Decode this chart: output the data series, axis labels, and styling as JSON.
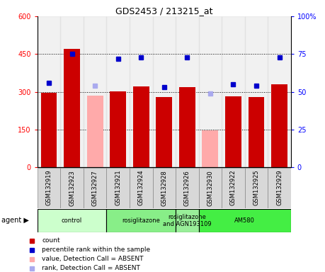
{
  "title": "GDS2453 / 213215_at",
  "samples": [
    "GSM132919",
    "GSM132923",
    "GSM132927",
    "GSM132921",
    "GSM132924",
    "GSM132928",
    "GSM132926",
    "GSM132930",
    "GSM132922",
    "GSM132925",
    "GSM132929"
  ],
  "bar_values": [
    295,
    470,
    285,
    302,
    320,
    280,
    318,
    148,
    282,
    278,
    330
  ],
  "bar_absent": [
    false,
    false,
    true,
    false,
    false,
    false,
    false,
    true,
    false,
    false,
    false
  ],
  "rank_values": [
    56,
    75,
    54,
    72,
    73,
    53,
    73,
    49,
    55,
    54,
    73
  ],
  "rank_absent": [
    false,
    false,
    true,
    false,
    false,
    false,
    false,
    true,
    false,
    false,
    false
  ],
  "ylim_left": [
    0,
    600
  ],
  "ylim_right": [
    0,
    100
  ],
  "yticks_left": [
    0,
    150,
    300,
    450,
    600
  ],
  "yticks_right": [
    0,
    25,
    50,
    75,
    100
  ],
  "bar_color_normal": "#cc0000",
  "bar_color_absent": "#ffaaaa",
  "rank_color_normal": "#0000cc",
  "rank_color_absent": "#aaaaee",
  "agent_groups": [
    {
      "label": "control",
      "start": 0,
      "end": 3,
      "color": "#ccffcc"
    },
    {
      "label": "rosiglitazone",
      "start": 3,
      "end": 6,
      "color": "#88ee88"
    },
    {
      "label": "rosiglitazone\nand AGN193109",
      "start": 6,
      "end": 7,
      "color": "#99ee99"
    },
    {
      "label": "AM580",
      "start": 7,
      "end": 11,
      "color": "#44ee44"
    }
  ],
  "legend_items": [
    {
      "color": "#cc0000",
      "label": "count",
      "marker": "s"
    },
    {
      "color": "#0000cc",
      "label": "percentile rank within the sample",
      "marker": "s"
    },
    {
      "color": "#ffaaaa",
      "label": "value, Detection Call = ABSENT",
      "marker": "s"
    },
    {
      "color": "#aaaaee",
      "label": "rank, Detection Call = ABSENT",
      "marker": "s"
    }
  ]
}
